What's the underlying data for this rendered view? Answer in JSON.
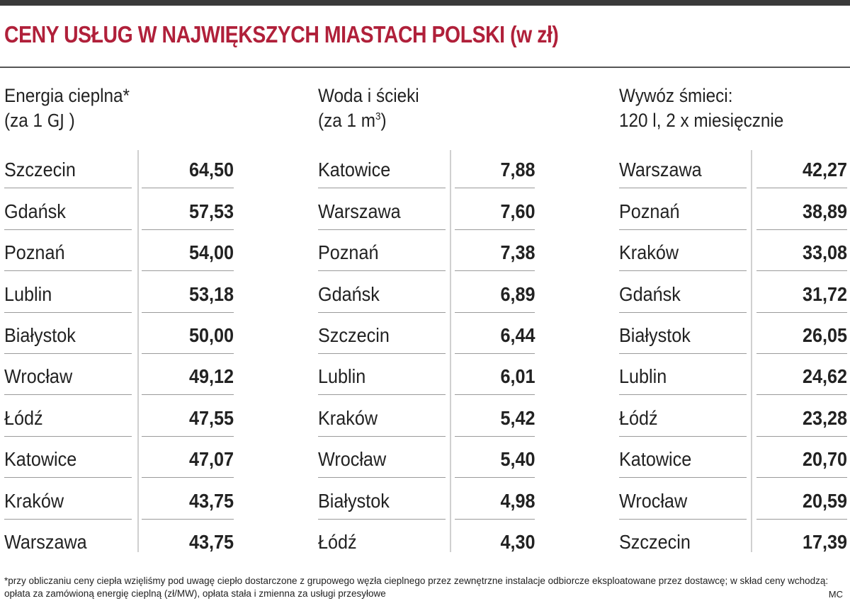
{
  "title": "CENY USŁUG W NAJWIĘKSZYCH MIASTACH POLSKI (w zł)",
  "columns": [
    {
      "heading_line1": "Energia cieplna*",
      "heading_line2": "(za 1",
      "heading_unit": "GJ",
      "heading_close": ")",
      "rows": [
        {
          "city": "Szczecin",
          "value": "64,50"
        },
        {
          "city": "Gdańsk",
          "value": "57,53"
        },
        {
          "city": "Poznań",
          "value": "54,00"
        },
        {
          "city": "Lublin",
          "value": "53,18"
        },
        {
          "city": "Białystok",
          "value": "50,00"
        },
        {
          "city": "Wrocław",
          "value": "49,12"
        },
        {
          "city": "Łódź",
          "value": "47,55"
        },
        {
          "city": "Katowice",
          "value": "47,07"
        },
        {
          "city": "Kraków",
          "value": "43,75"
        },
        {
          "city": "Warszawa",
          "value": "43,75"
        }
      ]
    },
    {
      "heading_line1": "Woda i ścieki",
      "heading_line2": "(za 1 m",
      "heading_sup": "3",
      "heading_close": ")",
      "rows": [
        {
          "city": "Katowice",
          "value": "7,88"
        },
        {
          "city": "Warszawa",
          "value": "7,60"
        },
        {
          "city": "Poznań",
          "value": "7,38"
        },
        {
          "city": "Gdańsk",
          "value": "6,89"
        },
        {
          "city": "Szczecin",
          "value": "6,44"
        },
        {
          "city": "Lublin",
          "value": "6,01"
        },
        {
          "city": "Kraków",
          "value": "5,42"
        },
        {
          "city": "Wrocław",
          "value": "5,40"
        },
        {
          "city": "Białystok",
          "value": "4,98"
        },
        {
          "city": "Łódź",
          "value": "4,30"
        }
      ]
    },
    {
      "heading_line1": "Wywóz śmieci:",
      "heading_line2": "120 l, 2 x miesięcznie",
      "rows": [
        {
          "city": "Warszawa",
          "value": "42,27"
        },
        {
          "city": "Poznań",
          "value": "38,89"
        },
        {
          "city": "Kraków",
          "value": "33,08"
        },
        {
          "city": "Gdańsk",
          "value": "31,72"
        },
        {
          "city": "Białystok",
          "value": "26,05"
        },
        {
          "city": "Lublin",
          "value": "24,62"
        },
        {
          "city": "Łódź",
          "value": "23,28"
        },
        {
          "city": "Katowice",
          "value": "20,70"
        },
        {
          "city": "Wrocław",
          "value": "20,59"
        },
        {
          "city": "Szczecin",
          "value": "17,39"
        }
      ]
    }
  ],
  "footnote": "*przy obliczaniu ceny ciepła wzięliśmy pod uwagę ciepło dostarczone z grupowego węzła cieplnego przez zewnętrzne instalacje odbiorcze eksploatowane przez dostawcę; w skład ceny wchodzą: opłata za zamówioną energię cieplną (zł/MW), opłata stała i zmienna za usługi przesyłowe",
  "credit": "MC",
  "colors": {
    "title": "#b0203a",
    "text": "#222222",
    "rule": "#555555"
  }
}
